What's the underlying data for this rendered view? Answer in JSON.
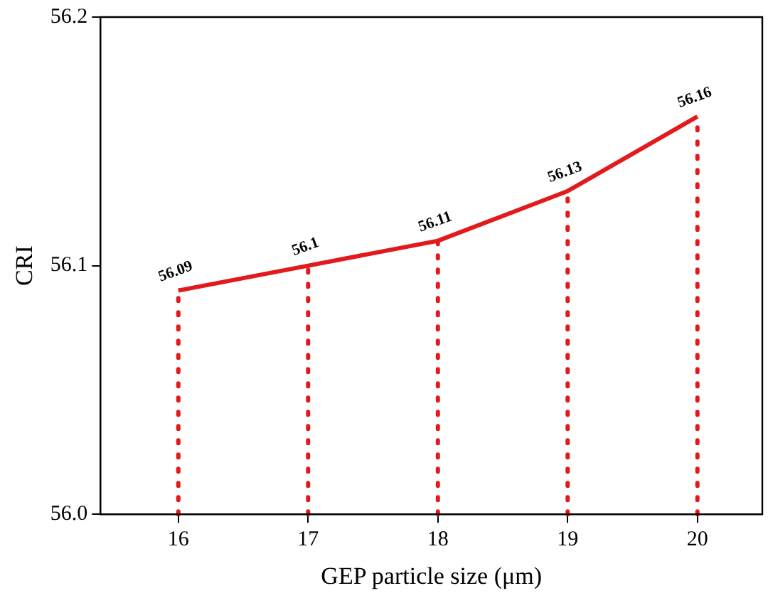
{
  "chart_data": {
    "type": "line",
    "xlabel": "GEP particle size (μm)",
    "ylabel": "CRI",
    "x": [
      16,
      17,
      18,
      19,
      20
    ],
    "series": [
      {
        "color": "#e31a1c",
        "values": [
          56.09,
          56.1,
          56.11,
          56.13,
          56.16
        ]
      }
    ],
    "xlim": [
      15.4,
      20.5
    ],
    "xticks": [
      16,
      17,
      18,
      19,
      20
    ],
    "ylim": [
      56.0,
      56.2
    ],
    "yticks": [
      {
        "value": 56.0,
        "label": "56.0"
      },
      {
        "value": 56.1,
        "label": "56.1"
      },
      {
        "value": 56.2,
        "label": "56.2"
      }
    ],
    "ref_lines": [
      {
        "axis": "x",
        "value": 16,
        "color": "#e31a1c",
        "line_style": "dotted"
      },
      {
        "axis": "x",
        "value": 17,
        "color": "#e31a1c",
        "line_style": "dotted"
      },
      {
        "axis": "x",
        "value": 18,
        "color": "#e31a1c",
        "line_style": "dotted"
      },
      {
        "axis": "x",
        "value": 19,
        "color": "#e31a1c",
        "line_style": "dotted"
      },
      {
        "axis": "x",
        "value": 20,
        "color": "#e31a1c",
        "line_style": "dotted"
      }
    ],
    "data_labels": true,
    "grid": false,
    "legend": false,
    "marker": "none",
    "line_style": "solid"
  }
}
